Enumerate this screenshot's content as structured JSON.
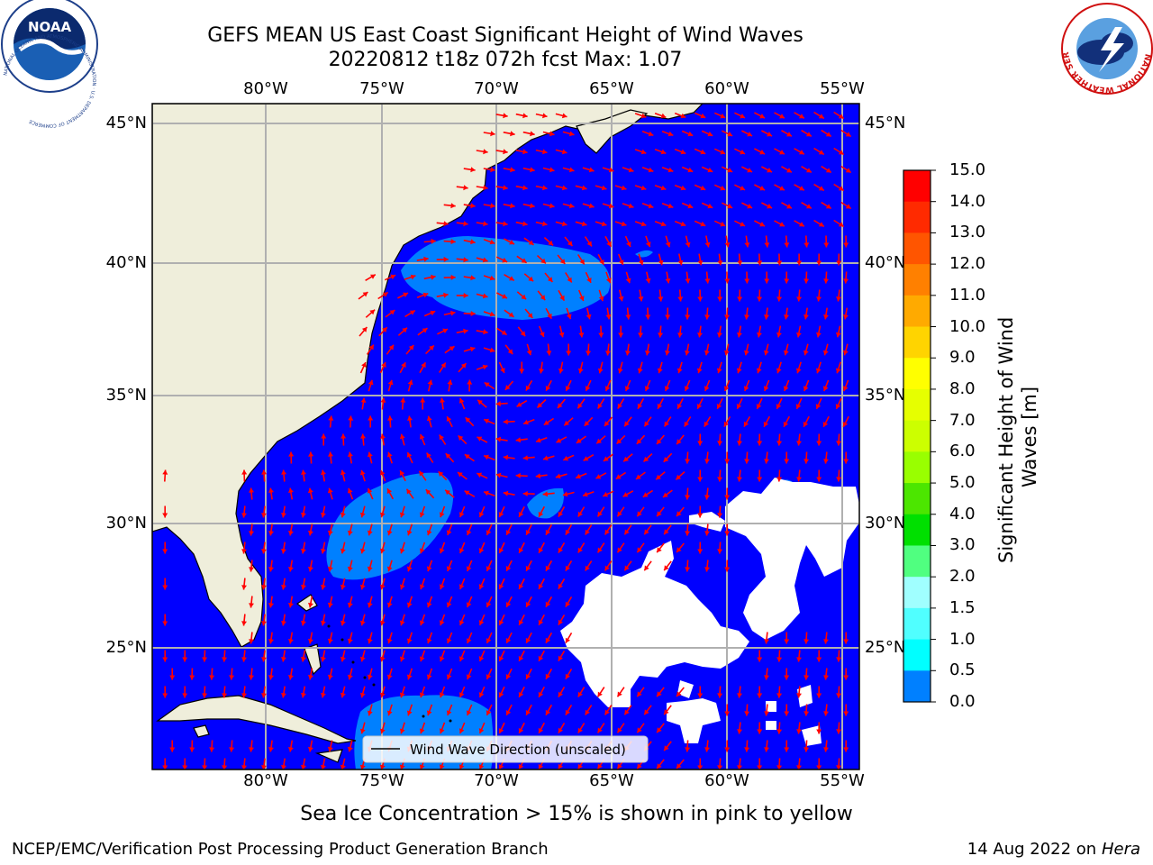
{
  "header": {
    "title_line1": "GEFS MEAN US East Coast Significant Height of Wind Waves",
    "title_line2": "20220812 t18z 072h fcst   Max: 1.07"
  },
  "logos": {
    "noaa_text": "NOAA",
    "noaa_ring": "NATIONAL OCEANIC AND ATMOSPHERIC ADMINISTRATION · U.S. DEPARTMENT OF COMMERCE",
    "nws_ring": "NATIONAL WEATHER SERVICE"
  },
  "map": {
    "lon_labels": [
      "80°W",
      "75°W",
      "70°W",
      "65°W",
      "60°W",
      "55°W"
    ],
    "lat_labels": [
      "45°N",
      "40°N",
      "35°N",
      "30°N",
      "25°N"
    ],
    "legend_label": "Wind Wave Direction (unscaled)",
    "colors": {
      "land": "#efeedb",
      "ocean_low": "#0000ff",
      "ocean_mid": "#0080ff",
      "vector": "#ff0000",
      "grid": "#b0b0b0"
    }
  },
  "colorbar": {
    "title": "Significant Height of Wind Waves [m]",
    "title_line1": "Significant Height of Wind",
    "title_line2": "Waves [m]",
    "labels": [
      "15.0",
      "14.0",
      "13.0",
      "12.0",
      "11.0",
      "10.0",
      "9.0",
      "8.0",
      "7.0",
      "6.0",
      "5.0",
      "4.0",
      "3.0",
      "2.0",
      "1.5",
      "1.0",
      "0.5",
      "0.0"
    ],
    "colors": [
      "#ff0000",
      "#ff2a00",
      "#ff5500",
      "#ff8000",
      "#ffaa00",
      "#ffd400",
      "#ffff00",
      "#e6ff00",
      "#ccff00",
      "#99ff00",
      "#4ce600",
      "#00e000",
      "#50ff80",
      "#a0ffff",
      "#50ffff",
      "#00ffff",
      "#0080ff",
      "#0000ff"
    ]
  },
  "footer": {
    "sea_ice_note": "Sea Ice Concentration > 15% is shown in pink to yellow",
    "branch": "NCEP/EMC/Verification Post Processing Product Generation Branch",
    "date": "14 Aug 2022 on",
    "machine": "Hera"
  }
}
